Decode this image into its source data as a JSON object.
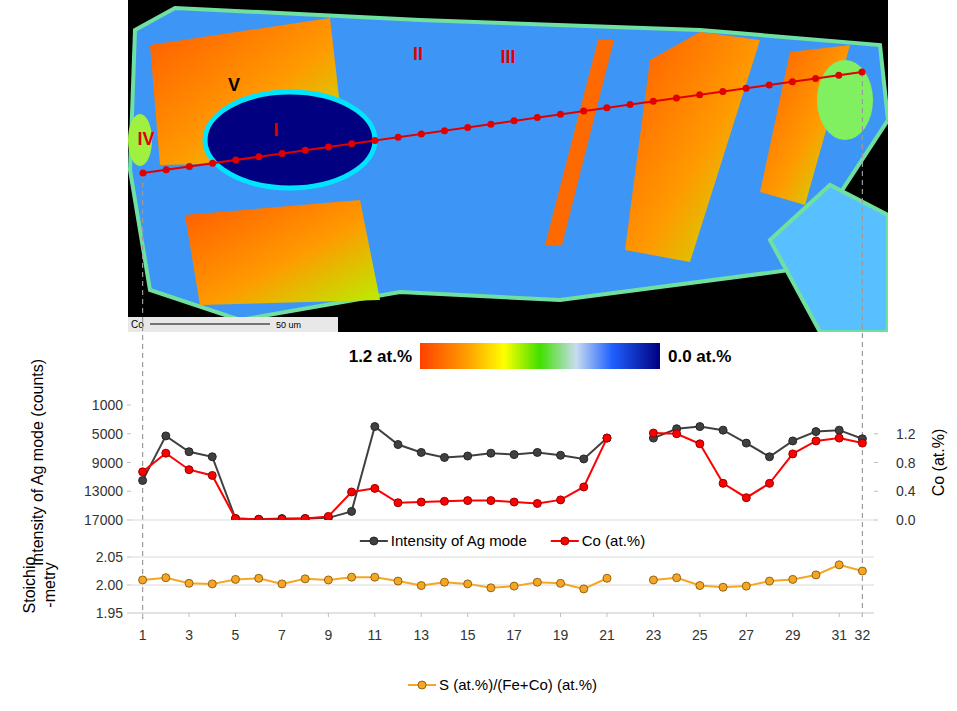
{
  "map": {
    "element_label": "Co",
    "scale_bar": "50 um",
    "zone_labels": [
      "I",
      "II",
      "III",
      "IV",
      "V"
    ],
    "colorbar": {
      "max_label": "1.2 at.%",
      "min_label": "0.0 at.%"
    }
  },
  "chart_data": [
    {
      "type": "line",
      "x": [
        1,
        2,
        3,
        4,
        5,
        6,
        7,
        8,
        9,
        10,
        11,
        12,
        13,
        14,
        15,
        16,
        17,
        18,
        19,
        20,
        21,
        22,
        23,
        24,
        25,
        26,
        27,
        28,
        29,
        30,
        31,
        32
      ],
      "xlim": [
        0.5,
        32.5
      ],
      "xticks": [
        1,
        3,
        5,
        7,
        9,
        11,
        13,
        15,
        17,
        19,
        21,
        23,
        25,
        27,
        29,
        31,
        32
      ],
      "ylim": [
        17000,
        1000
      ],
      "yticks": [
        1000,
        5000,
        9000,
        13000,
        17000
      ],
      "y2lim": [
        0,
        1.6
      ],
      "y2ticks": [
        {
          "value": 0,
          "label": "0.0"
        },
        0.4,
        0.8,
        1.2
      ],
      "y_label": "Intensity of Ag mode (counts)",
      "y2_label": "Co (at.%)",
      "tick_labels": "y",
      "grid": false,
      "legend": "bottom",
      "series": [
        {
          "name": "Intensity of Ag mode",
          "color": "#404040",
          "marker": "circle",
          "values": [
            11500,
            5300,
            7500,
            8200,
            16800,
            16900,
            16800,
            16800,
            16700,
            15800,
            4000,
            6500,
            7600,
            8300,
            8100,
            7700,
            7900,
            7600,
            8000,
            8500,
            5600,
            null,
            5600,
            4300,
            4000,
            4500,
            6300,
            8200,
            6000,
            4700,
            4500,
            5700
          ]
        },
        {
          "name": "Co (at.%)",
          "color": "#ff0000",
          "marker": "circle",
          "axis": "y2",
          "values": [
            0.67,
            0.93,
            0.7,
            0.62,
            0.02,
            0.01,
            0.01,
            0.02,
            0.05,
            0.39,
            0.44,
            0.24,
            0.25,
            0.26,
            0.27,
            0.27,
            0.25,
            0.23,
            0.28,
            0.46,
            1.14,
            null,
            1.21,
            1.2,
            1.06,
            0.51,
            0.31,
            0.51,
            0.92,
            1.1,
            1.14,
            1.07
          ]
        }
      ]
    },
    {
      "type": "line",
      "x": [
        1,
        2,
        3,
        4,
        5,
        6,
        7,
        8,
        9,
        10,
        11,
        12,
        13,
        14,
        15,
        16,
        17,
        18,
        19,
        20,
        21,
        22,
        23,
        24,
        25,
        26,
        27,
        28,
        29,
        30,
        31,
        32
      ],
      "xlim": [
        0.5,
        32.5
      ],
      "xticks": [
        1,
        3,
        5,
        7,
        9,
        11,
        13,
        15,
        17,
        19,
        21,
        23,
        25,
        27,
        29,
        31,
        32
      ],
      "ylim": [
        1.95,
        2.05
      ],
      "yticks": [
        1.95,
        {
          "value": 2,
          "label": "2.00"
        },
        2.05
      ],
      "y_label": "Stoichio\n-metry",
      "grid": true,
      "legend": "bottom",
      "series": [
        {
          "name": "S (at.%)/(Fe+Co) (at.%)",
          "color": "#f5a623",
          "marker": "circle",
          "values": [
            2.009,
            2.013,
            2.003,
            2.002,
            2.01,
            2.012,
            2.002,
            2.011,
            2.009,
            2.014,
            2.014,
            2.007,
            1.999,
            2.005,
            2.002,
            1.995,
            1.998,
            2.005,
            2.003,
            1.993,
            2.012,
            null,
            2.009,
            2.013,
            1.999,
            1.996,
            1.998,
            2.007,
            2.01,
            2.018,
            2.036,
            2.025
          ]
        }
      ]
    }
  ]
}
